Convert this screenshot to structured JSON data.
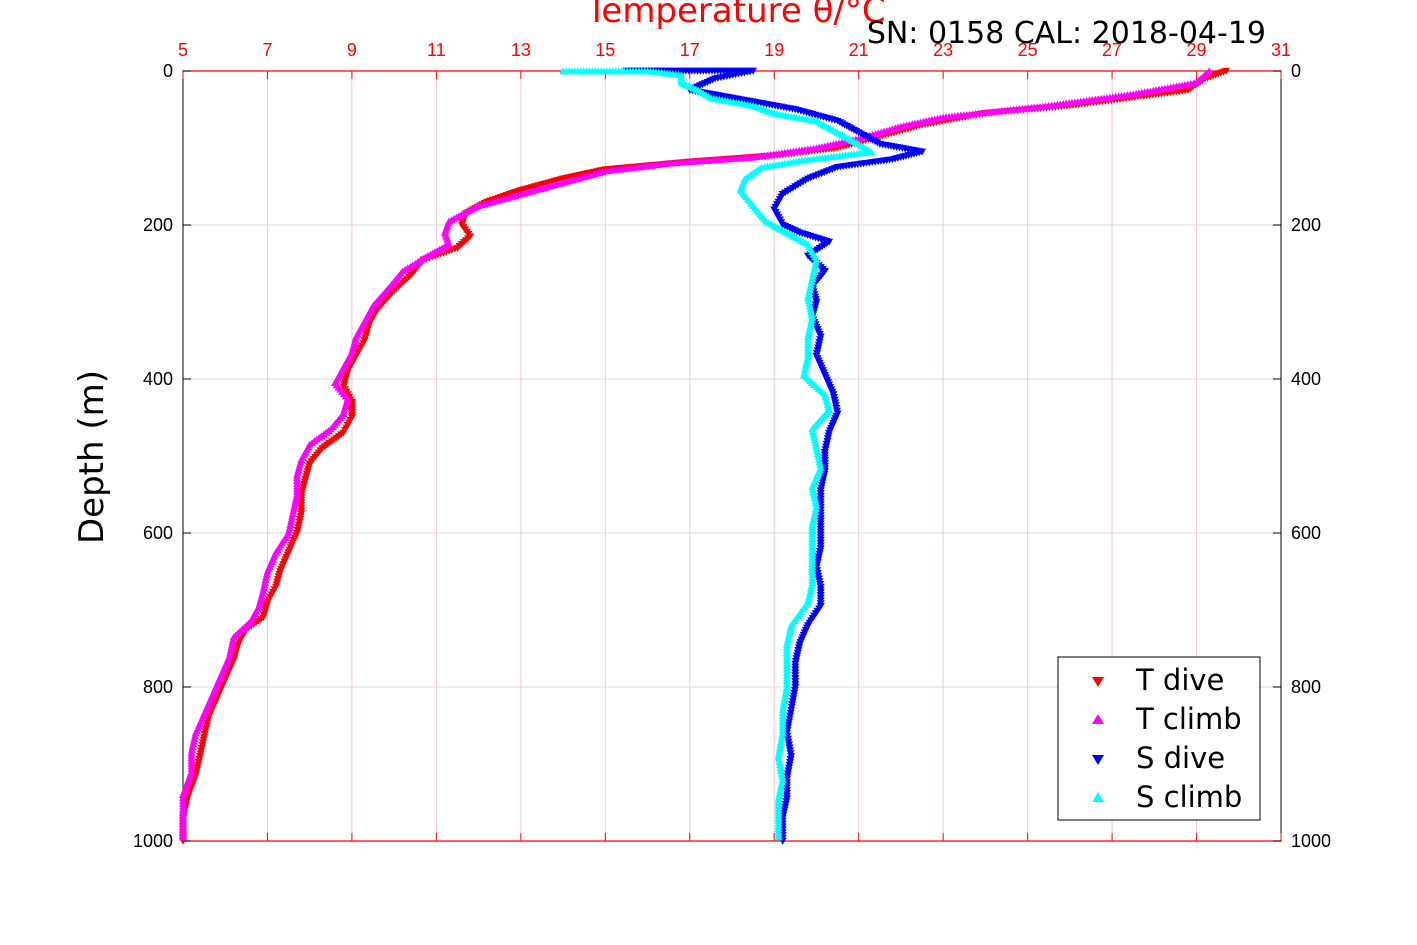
{
  "chart_data": {
    "type": "scatter",
    "title": "Temperature θ/°C",
    "annotation": "SN: 0158  CAL: 2018-04-19",
    "ylabel": "Depth (m)",
    "xlim": [
      5,
      31
    ],
    "ylim": [
      0,
      1000
    ],
    "y_inverted": true,
    "x_ticks": [
      "5",
      "7",
      "9",
      "11",
      "13",
      "15",
      "17",
      "19",
      "21",
      "23",
      "25",
      "27",
      "29",
      "31"
    ],
    "y_ticks": [
      "0",
      "200",
      "400",
      "600",
      "800",
      "1000"
    ],
    "grid": true,
    "legend_position": "bottom-right",
    "series": [
      {
        "name": "T dive",
        "color": "#ff0000",
        "marker": "triangle-down",
        "points": [
          [
            29.7,
            0
          ],
          [
            29.2,
            10
          ],
          [
            28.8,
            25
          ],
          [
            26.0,
            45
          ],
          [
            24.0,
            55
          ],
          [
            22.5,
            70
          ],
          [
            21.5,
            85
          ],
          [
            20.5,
            100
          ],
          [
            19.0,
            110
          ],
          [
            17.0,
            118
          ],
          [
            15.0,
            128
          ],
          [
            14.0,
            140
          ],
          [
            13.0,
            155
          ],
          [
            12.2,
            170
          ],
          [
            11.7,
            185
          ],
          [
            11.6,
            200
          ],
          [
            11.8,
            215
          ],
          [
            11.5,
            230
          ],
          [
            10.7,
            245
          ],
          [
            10.4,
            265
          ],
          [
            10.0,
            285
          ],
          [
            9.6,
            310
          ],
          [
            9.4,
            330
          ],
          [
            9.3,
            350
          ],
          [
            9.1,
            370
          ],
          [
            8.9,
            390
          ],
          [
            8.8,
            410
          ],
          [
            9.0,
            430
          ],
          [
            9.0,
            450
          ],
          [
            8.8,
            470
          ],
          [
            8.3,
            490
          ],
          [
            8.0,
            510
          ],
          [
            7.9,
            530
          ],
          [
            7.8,
            550
          ],
          [
            7.8,
            575
          ],
          [
            7.7,
            600
          ],
          [
            7.5,
            625
          ],
          [
            7.3,
            650
          ],
          [
            7.2,
            670
          ],
          [
            7.0,
            690
          ],
          [
            6.9,
            710
          ],
          [
            6.5,
            725
          ],
          [
            6.3,
            745
          ],
          [
            6.2,
            765
          ],
          [
            6.0,
            790
          ],
          [
            5.8,
            815
          ],
          [
            5.6,
            840
          ],
          [
            5.5,
            865
          ],
          [
            5.4,
            890
          ],
          [
            5.3,
            915
          ],
          [
            5.1,
            945
          ],
          [
            5.0,
            970
          ],
          [
            5.0,
            1000
          ]
        ]
      },
      {
        "name": "T climb",
        "color": "#ff00ff",
        "marker": "triangle-up",
        "points": [
          [
            29.3,
            0
          ],
          [
            29.0,
            15
          ],
          [
            27.5,
            30
          ],
          [
            25.5,
            45
          ],
          [
            23.0,
            60
          ],
          [
            22.0,
            72
          ],
          [
            21.0,
            88
          ],
          [
            20.0,
            100
          ],
          [
            18.5,
            112
          ],
          [
            16.5,
            120
          ],
          [
            15.0,
            130
          ],
          [
            14.0,
            145
          ],
          [
            13.0,
            160
          ],
          [
            12.0,
            175
          ],
          [
            11.3,
            195
          ],
          [
            11.2,
            210
          ],
          [
            11.3,
            225
          ],
          [
            10.8,
            240
          ],
          [
            10.2,
            260
          ],
          [
            9.9,
            280
          ],
          [
            9.5,
            305
          ],
          [
            9.3,
            325
          ],
          [
            9.1,
            345
          ],
          [
            9.0,
            365
          ],
          [
            8.8,
            385
          ],
          [
            8.6,
            405
          ],
          [
            8.9,
            425
          ],
          [
            8.8,
            445
          ],
          [
            8.5,
            465
          ],
          [
            8.0,
            485
          ],
          [
            7.8,
            505
          ],
          [
            7.7,
            525
          ],
          [
            7.7,
            550
          ],
          [
            7.6,
            575
          ],
          [
            7.5,
            600
          ],
          [
            7.2,
            625
          ],
          [
            7.0,
            650
          ],
          [
            6.9,
            675
          ],
          [
            6.8,
            695
          ],
          [
            6.6,
            715
          ],
          [
            6.2,
            735
          ],
          [
            6.1,
            760
          ],
          [
            5.9,
            785
          ],
          [
            5.7,
            810
          ],
          [
            5.5,
            835
          ],
          [
            5.3,
            860
          ],
          [
            5.2,
            885
          ],
          [
            5.2,
            910
          ],
          [
            5.0,
            940
          ],
          [
            5.0,
            970
          ],
          [
            5.0,
            995
          ]
        ]
      },
      {
        "name": "S dive",
        "color": "#0000ff",
        "marker": "triangle-down",
        "points": [
          [
            15.5,
            0
          ],
          [
            16.5,
            0
          ],
          [
            17.8,
            0
          ],
          [
            18.5,
            0
          ],
          [
            17.6,
            10
          ],
          [
            17.0,
            25
          ],
          [
            18.0,
            35
          ],
          [
            19.5,
            50
          ],
          [
            20.5,
            65
          ],
          [
            21.0,
            80
          ],
          [
            21.5,
            95
          ],
          [
            22.5,
            105
          ],
          [
            21.8,
            115
          ],
          [
            20.5,
            125
          ],
          [
            19.8,
            140
          ],
          [
            19.2,
            160
          ],
          [
            19.0,
            180
          ],
          [
            19.2,
            200
          ],
          [
            19.6,
            210
          ],
          [
            20.3,
            222
          ],
          [
            19.8,
            240
          ],
          [
            20.2,
            260
          ],
          [
            19.9,
            280
          ],
          [
            20.0,
            300
          ],
          [
            19.9,
            320
          ],
          [
            20.1,
            345
          ],
          [
            20.0,
            370
          ],
          [
            20.2,
            395
          ],
          [
            20.4,
            420
          ],
          [
            20.5,
            445
          ],
          [
            20.3,
            470
          ],
          [
            20.2,
            495
          ],
          [
            20.2,
            520
          ],
          [
            20.1,
            545
          ],
          [
            20.1,
            570
          ],
          [
            20.1,
            595
          ],
          [
            20.1,
            620
          ],
          [
            20.0,
            645
          ],
          [
            20.1,
            670
          ],
          [
            20.1,
            695
          ],
          [
            19.8,
            720
          ],
          [
            19.6,
            745
          ],
          [
            19.5,
            770
          ],
          [
            19.5,
            800
          ],
          [
            19.4,
            830
          ],
          [
            19.3,
            860
          ],
          [
            19.4,
            890
          ],
          [
            19.3,
            920
          ],
          [
            19.3,
            945
          ],
          [
            19.2,
            970
          ],
          [
            19.2,
            1000
          ]
        ]
      },
      {
        "name": "S climb",
        "color": "#00ffff",
        "marker": "triangle-up",
        "points": [
          [
            14.0,
            0
          ],
          [
            16.0,
            0
          ],
          [
            16.8,
            5
          ],
          [
            16.8,
            15
          ],
          [
            17.2,
            25
          ],
          [
            17.5,
            35
          ],
          [
            18.5,
            45
          ],
          [
            19.0,
            55
          ],
          [
            20.0,
            65
          ],
          [
            20.5,
            80
          ],
          [
            21.0,
            95
          ],
          [
            21.3,
            105
          ],
          [
            19.8,
            115
          ],
          [
            18.7,
            125
          ],
          [
            18.3,
            140
          ],
          [
            18.2,
            155
          ],
          [
            18.5,
            175
          ],
          [
            18.8,
            195
          ],
          [
            19.3,
            210
          ],
          [
            19.8,
            225
          ],
          [
            20.0,
            245
          ],
          [
            19.9,
            270
          ],
          [
            19.8,
            295
          ],
          [
            19.9,
            320
          ],
          [
            19.8,
            345
          ],
          [
            19.8,
            370
          ],
          [
            19.7,
            395
          ],
          [
            20.2,
            420
          ],
          [
            20.3,
            440
          ],
          [
            19.9,
            465
          ],
          [
            20.0,
            490
          ],
          [
            20.1,
            515
          ],
          [
            19.9,
            540
          ],
          [
            20.0,
            565
          ],
          [
            19.9,
            590
          ],
          [
            19.9,
            615
          ],
          [
            19.9,
            640
          ],
          [
            19.9,
            665
          ],
          [
            19.8,
            690
          ],
          [
            19.4,
            720
          ],
          [
            19.3,
            745
          ],
          [
            19.3,
            770
          ],
          [
            19.3,
            800
          ],
          [
            19.2,
            830
          ],
          [
            19.2,
            860
          ],
          [
            19.1,
            890
          ],
          [
            19.2,
            920
          ],
          [
            19.1,
            945
          ],
          [
            19.1,
            970
          ],
          [
            19.1,
            995
          ]
        ]
      }
    ]
  }
}
